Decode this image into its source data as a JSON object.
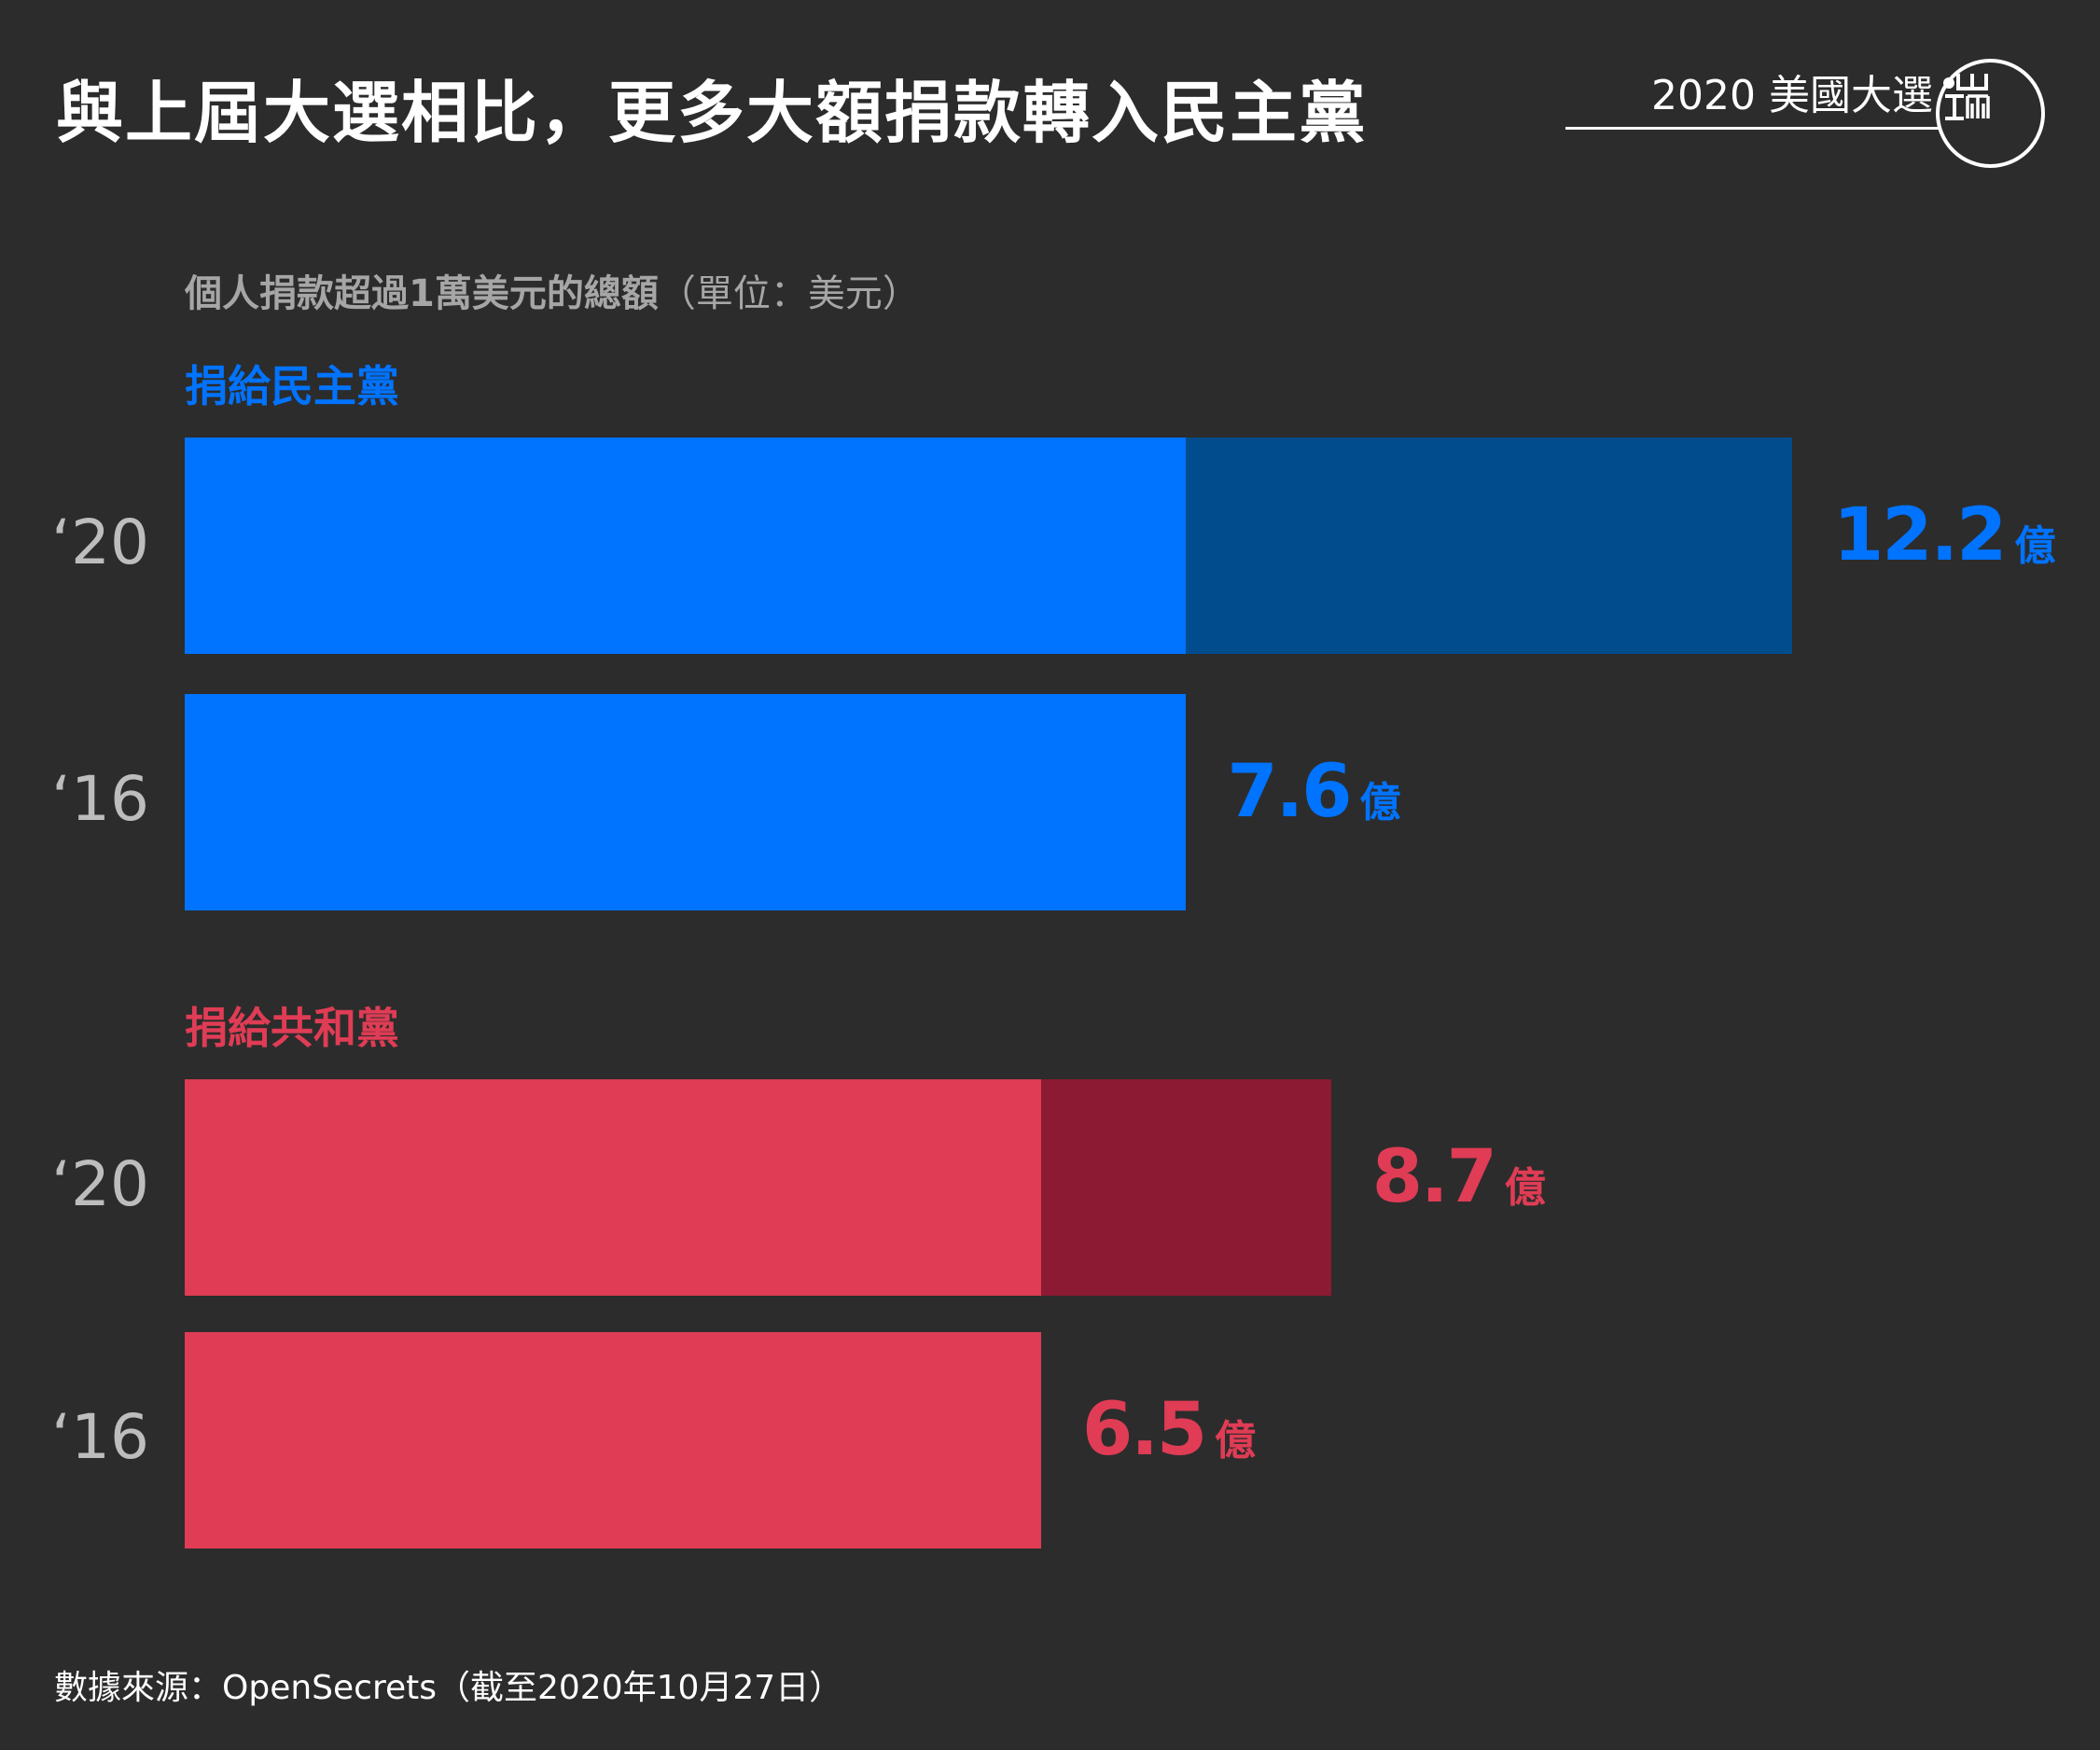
{
  "title": "與上屆大選相比，更多大額捐款轉入民主黨",
  "series_tag": "2020 美國大選",
  "subtitle": "個人捐款超過1萬美元的總額",
  "subtitle_unit": "（單位：美元）",
  "source": "數據來源：OpenSecrets（截至2020年10月27日）",
  "colors": {
    "background": "#2c2c2c",
    "dem": "#0073ff",
    "dem_dark": "#004c8c",
    "rep": "#e03c55",
    "rep_dark": "#8b1a32"
  },
  "chart_data": {
    "type": "bar",
    "orientation": "horizontal",
    "unit": "億",
    "groups": [
      {
        "label": "捐給民主黨",
        "color": "#0073ff",
        "highlight_color": "#004c8c",
        "bars": [
          {
            "year": "‘20",
            "value": 12.2,
            "display": "12.2"
          },
          {
            "year": "‘16",
            "value": 7.6,
            "display": "7.6"
          }
        ]
      },
      {
        "label": "捐給共和黨",
        "color": "#e03c55",
        "highlight_color": "#8b1a32",
        "bars": [
          {
            "year": "‘20",
            "value": 8.7,
            "display": "8.7"
          },
          {
            "year": "‘16",
            "value": 6.5,
            "display": "6.5"
          }
        ]
      }
    ]
  }
}
